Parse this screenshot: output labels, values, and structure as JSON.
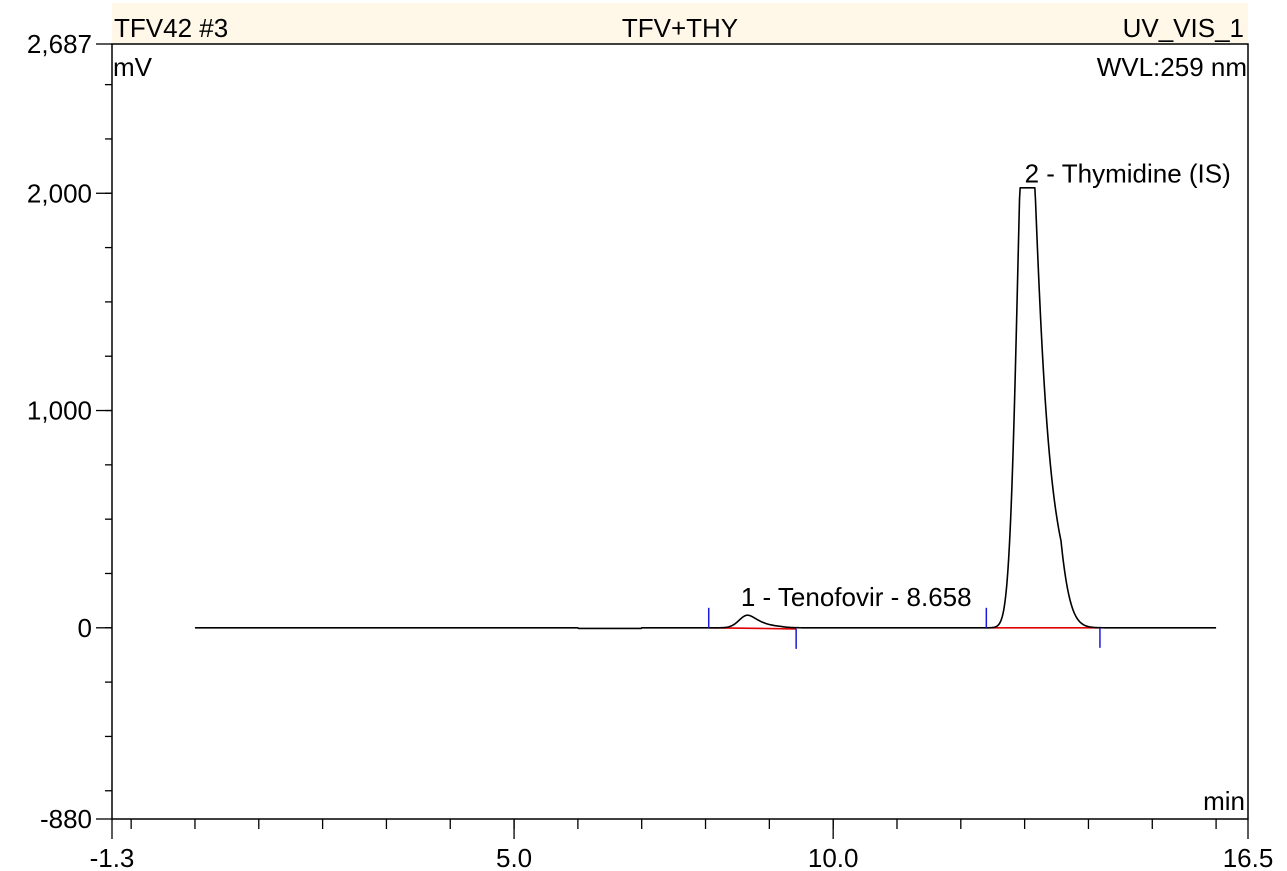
{
  "header": {
    "left": "TFV42 #3",
    "center": "TFV+THY",
    "right": "UV_VIS_1",
    "wavelength": "WVL:259 nm",
    "band_color": "#fff8e8"
  },
  "chart_data": {
    "type": "line",
    "title": "TFV+THY",
    "xlabel": "min",
    "ylabel": "mV",
    "xlim": [
      -1.3,
      16.5
    ],
    "ylim": [
      -880,
      2687
    ],
    "x_tick_labels": [
      {
        "value": -1.3,
        "label": "-1.3"
      },
      {
        "value": 5.0,
        "label": "5.0"
      },
      {
        "value": 10.0,
        "label": "10.0"
      },
      {
        "value": 16.5,
        "label": "16.5"
      }
    ],
    "x_minor_ticks": [
      -1.0,
      0.0,
      1.0,
      2.0,
      3.0,
      4.0,
      5.0,
      6.0,
      7.0,
      8.0,
      9.0,
      10.0,
      11.0,
      12.0,
      13.0,
      14.0,
      15.0,
      16.0
    ],
    "y_tick_labels": [
      {
        "value": 2687,
        "label": "2,687"
      },
      {
        "value": 2000,
        "label": "2,000"
      },
      {
        "value": 1000,
        "label": "1,000"
      },
      {
        "value": 0,
        "label": "0"
      },
      {
        "value": -880,
        "label": "-880"
      }
    ],
    "y_minor_ticks": [
      -750,
      -500,
      -250,
      0,
      250,
      500,
      750,
      1000,
      1250,
      1500,
      1750,
      2000,
      2250,
      2500
    ],
    "trace": {
      "color": "#000000",
      "x_start": 0.0,
      "x_end": 16.0,
      "baseline": 0,
      "peaks": [
        {
          "center": 8.658,
          "height": 58,
          "sigma": 0.13,
          "tail": 0.12
        },
        {
          "center": 13.03,
          "height": 2750,
          "sigma": 0.135,
          "tail": 0.14
        }
      ],
      "clip_top": 2025,
      "clip_half_width": 0.065
    },
    "peaks": [
      {
        "label": "1 - Tenofovir - 8.658",
        "retention_time": 8.658,
        "label_x": 8.6,
        "label_y": 100,
        "start": 8.05,
        "end": 9.42,
        "start_y": 0,
        "end_y": -5
      },
      {
        "label": "2 - Thymidine (IS)",
        "retention_time": 13.03,
        "label_x": 13.0,
        "label_y": 2050,
        "start": 12.4,
        "end": 14.18,
        "start_y": 0,
        "end_y": 0
      }
    ],
    "integration_baseline_color": "#e00000",
    "delimiter_color": "#1a1adc",
    "grid": false
  }
}
